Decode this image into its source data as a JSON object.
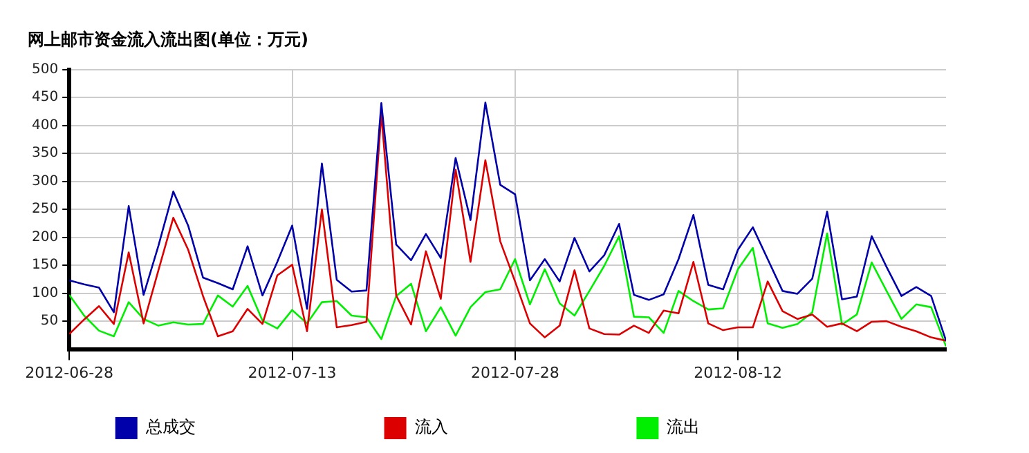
{
  "chart_data": {
    "type": "line",
    "title": "网上邮市资金流入流出图(单位：万元)",
    "x": [
      "2012-06-28",
      "2012-06-29",
      "2012-06-30",
      "2012-07-01",
      "2012-07-02",
      "2012-07-03",
      "2012-07-04",
      "2012-07-05",
      "2012-07-06",
      "2012-07-07",
      "2012-07-08",
      "2012-07-09",
      "2012-07-10",
      "2012-07-11",
      "2012-07-12",
      "2012-07-13",
      "2012-07-14",
      "2012-07-15",
      "2012-07-16",
      "2012-07-17",
      "2012-07-18",
      "2012-07-19",
      "2012-07-20",
      "2012-07-21",
      "2012-07-22",
      "2012-07-23",
      "2012-07-24",
      "2012-07-25",
      "2012-07-26",
      "2012-07-27",
      "2012-07-28",
      "2012-07-29",
      "2012-07-30",
      "2012-07-31",
      "2012-08-01",
      "2012-08-02",
      "2012-08-03",
      "2012-08-04",
      "2012-08-05",
      "2012-08-06",
      "2012-08-07",
      "2012-08-08",
      "2012-08-09",
      "2012-08-10",
      "2012-08-11",
      "2012-08-12",
      "2012-08-13",
      "2012-08-14",
      "2012-08-15",
      "2012-08-16",
      "2012-08-17",
      "2012-08-18",
      "2012-08-19",
      "2012-08-20",
      "2012-08-21",
      "2012-08-22",
      "2012-08-23",
      "2012-08-24",
      "2012-08-25",
      "2012-08-26"
    ],
    "series": [
      {
        "name": "总成交",
        "color": "#0000aa",
        "values": [
          123,
          116,
          110,
          66,
          256,
          97,
          185,
          282,
          221,
          128,
          118,
          107,
          184,
          96,
          156,
          221,
          72,
          332,
          124,
          103,
          105,
          440,
          187,
          159,
          206,
          163,
          342,
          231,
          441,
          294,
          277,
          123,
          161,
          121,
          199,
          139,
          168,
          224,
          97,
          88,
          98,
          161,
          240,
          115,
          107,
          178,
          218,
          161,
          104,
          99,
          126,
          246,
          89,
          94,
          202,
          147,
          95,
          111,
          95,
          15
        ]
      },
      {
        "name": "流入",
        "color": "#dd0000",
        "values": [
          27,
          53,
          77,
          45,
          173,
          46,
          141,
          235,
          178,
          95,
          23,
          32,
          72,
          45,
          132,
          151,
          32,
          250,
          39,
          43,
          49,
          421,
          96,
          44,
          175,
          90,
          321,
          156,
          338,
          193,
          121,
          46,
          21,
          42,
          141,
          37,
          27,
          26,
          42,
          29,
          69,
          64,
          156,
          46,
          34,
          39,
          39,
          121,
          68,
          54,
          62,
          40,
          46,
          32,
          49,
          50,
          40,
          32,
          21,
          15
        ]
      },
      {
        "name": "流出",
        "color": "#00ee00",
        "values": [
          97,
          60,
          33,
          23,
          84,
          54,
          42,
          48,
          44,
          45,
          96,
          76,
          113,
          51,
          37,
          70,
          46,
          84,
          86,
          60,
          57,
          18,
          95,
          117,
          32,
          75,
          24,
          75,
          102,
          107,
          161,
          80,
          143,
          82,
          60,
          104,
          149,
          202,
          58,
          57,
          29,
          104,
          86,
          71,
          73,
          143,
          181,
          46,
          38,
          45,
          66,
          207,
          44,
          62,
          155,
          104,
          54,
          80,
          75,
          5
        ]
      }
    ],
    "xlim": [
      "2012-06-28",
      "2012-08-26"
    ],
    "xticks": [
      "2012-06-28",
      "2012-07-13",
      "2012-07-28",
      "2012-08-12"
    ],
    "ylim": [
      0,
      500
    ],
    "yticks": [
      50,
      100,
      150,
      200,
      250,
      300,
      350,
      400,
      450,
      500
    ],
    "grid": true,
    "legend": "bottom",
    "marker": "none",
    "line_style": "solid"
  }
}
